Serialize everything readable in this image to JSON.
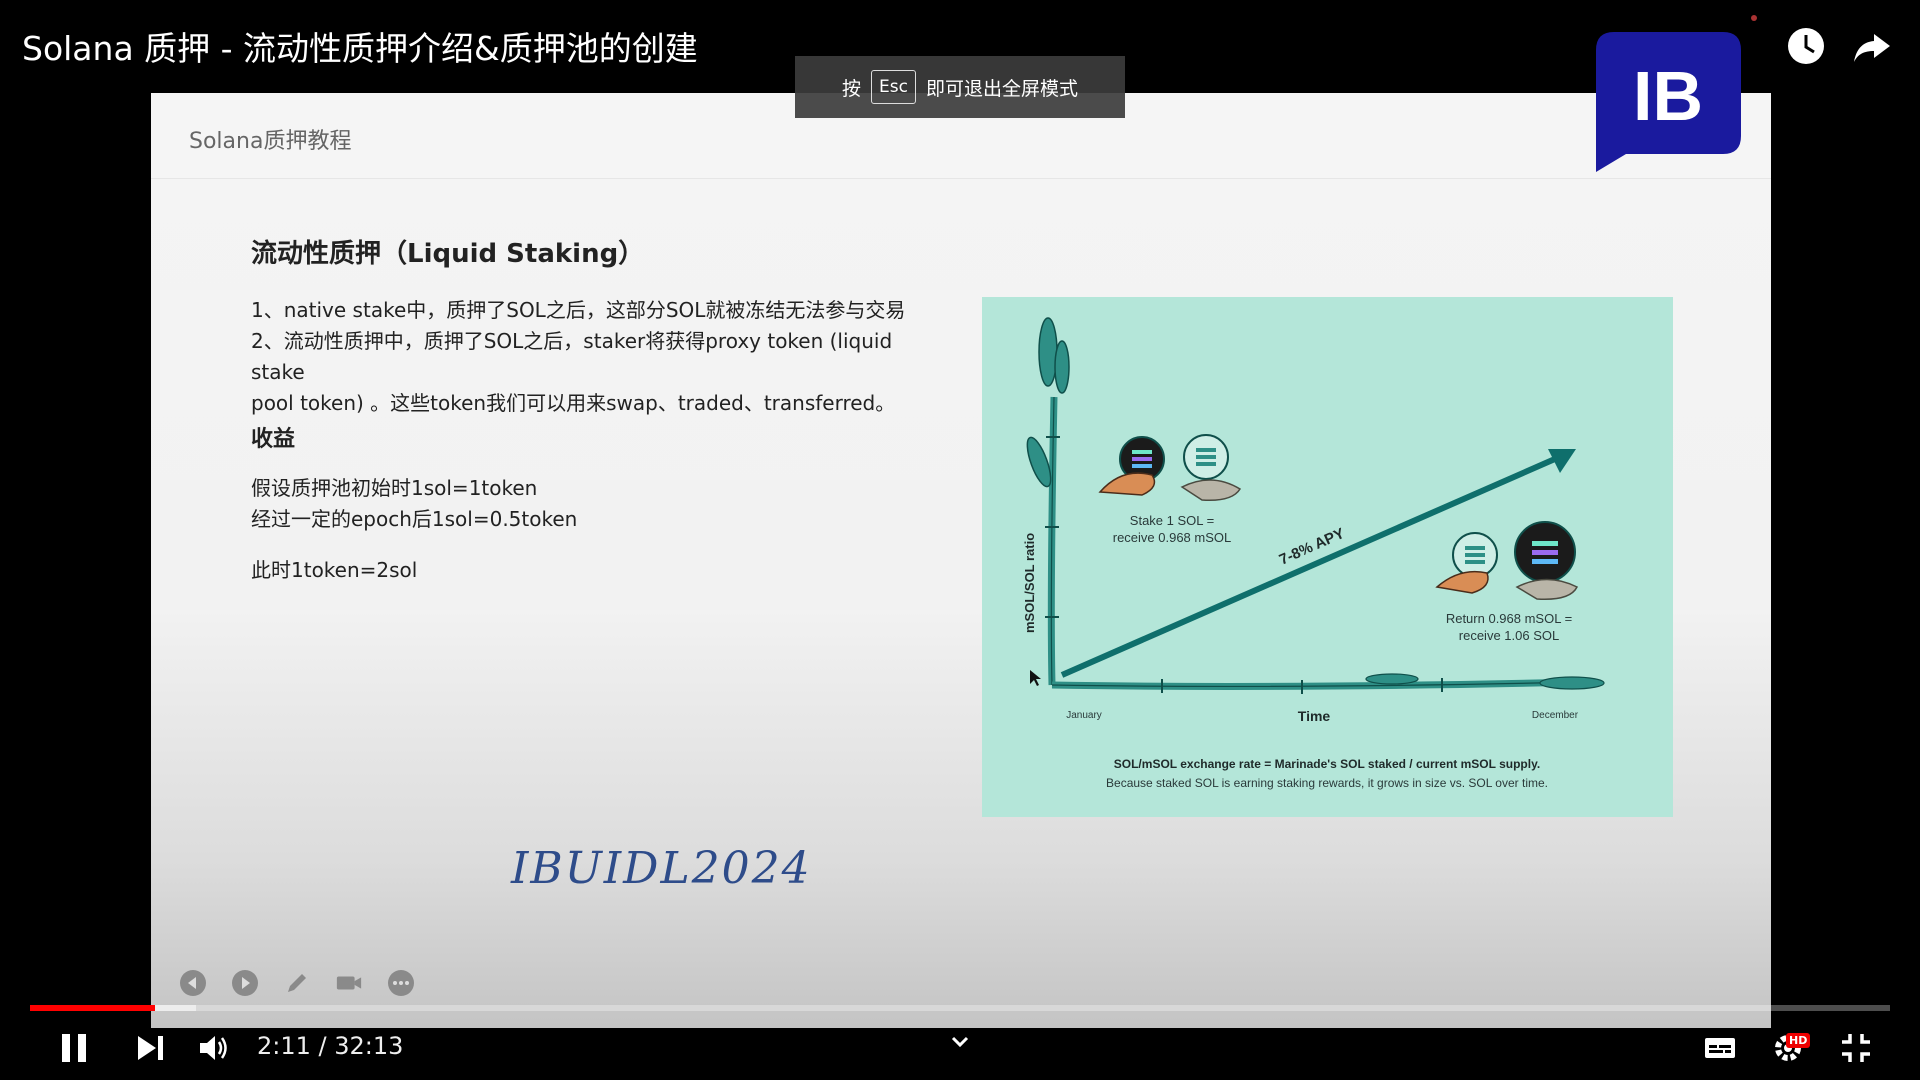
{
  "video": {
    "title": "Solana 质押 - 流动性质押介绍&质押池的创建",
    "current_time": "2:11",
    "duration": "32:13",
    "time_display": "2:11 / 32:13",
    "played_fraction": 0.067,
    "buffered_fraction": 0.089
  },
  "fullscreen_toast": {
    "prefix": "按",
    "key": "Esc",
    "suffix": "即可退出全屏模式"
  },
  "channel_logo": {
    "text": "IB",
    "color": "#1a1a9e"
  },
  "slide": {
    "course": "Solana质押教程",
    "heading": "流动性质押（Liquid Staking）",
    "lines_1": [
      "1、native stake中，质押了SOL之后，这部分SOL就被冻结无法参与交易",
      "2、流动性质押中，质押了SOL之后，staker将获得proxy token (liquid stake",
      "pool token) 。这些token我们可以用来swap、traded、transferred。"
    ],
    "sub_heading": "收益",
    "lines_2": [
      "假设质押池初始时1sol=1token",
      "经过一定的epoch后1sol=0.5token"
    ],
    "line_3": "此时1token=2sol",
    "watermark": "IBUIDL2024"
  },
  "diagram": {
    "y_label": "mSOL/SOL ratio",
    "x_label": "Time",
    "x_start": "January",
    "x_end": "December",
    "trend_label": "7-8% APY",
    "stake_note_1": "Stake 1 SOL =",
    "stake_note_2": "receive 0.968 mSOL",
    "return_note_1": "Return 0.968 mSOL =",
    "return_note_2": "receive 1.06 SOL",
    "footer_1": "SOL/mSOL exchange rate = Marinade's SOL staked / current mSOL supply.",
    "footer_2": "Because staked SOL is earning staking rewards, it grows in size vs. SOL over time."
  },
  "icons": {
    "top": [
      "clock-icon",
      "share-icon"
    ],
    "slide_tools": [
      "prev-slide-icon",
      "next-slide-icon",
      "pen-icon",
      "camera-icon",
      "more-icon"
    ],
    "controls": [
      "pause-icon",
      "next-icon",
      "volume-icon",
      "chevron-down-icon",
      "subtitles-icon",
      "settings-icon",
      "exit-fullscreen-icon"
    ]
  },
  "settings_badge": "HD",
  "colors": {
    "progress": "#ff0000",
    "diagram_bg": "#b4e6d9",
    "teal": "#0f6f6c"
  }
}
